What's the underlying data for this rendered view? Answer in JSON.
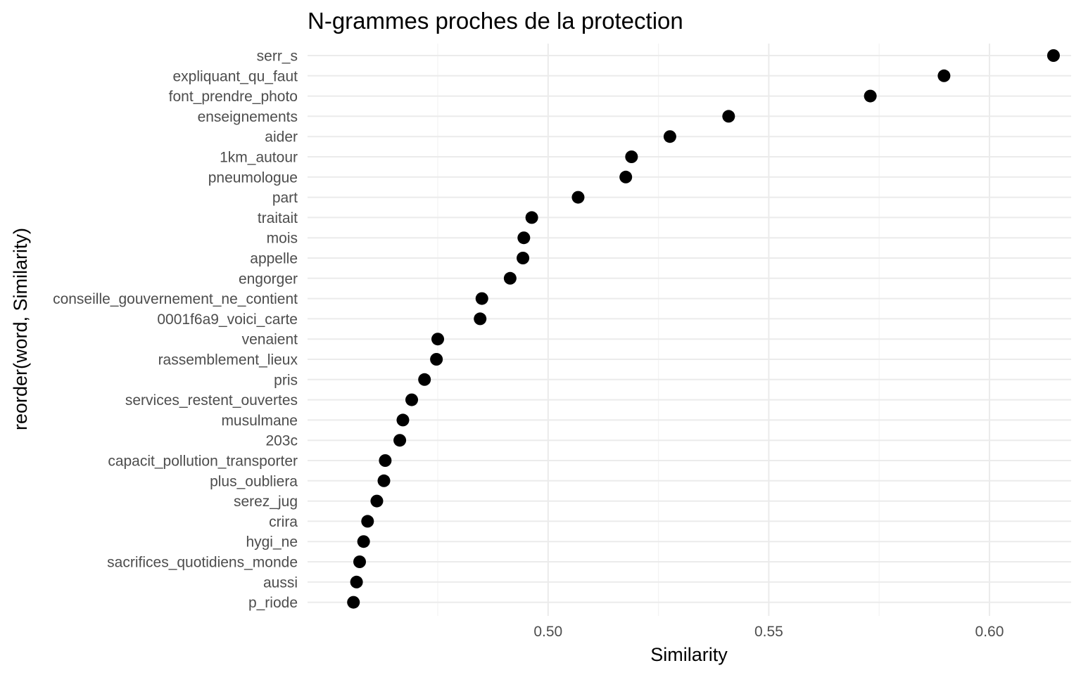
{
  "chart_data": {
    "type": "scatter",
    "title": "N-grammes proches de la protection",
    "xlabel": "Similarity",
    "ylabel": "reorder(word, Similarity)",
    "xlim": [
      0.4455,
      0.6185
    ],
    "x_ticks": [
      "0.50",
      "0.55",
      "0.60"
    ],
    "x_tick_values": [
      0.5,
      0.55,
      0.6
    ],
    "grid": true,
    "point_color": "#000000",
    "categories": [
      "serr_s",
      "expliquant_qu_faut",
      "font_prendre_photo",
      "enseignements",
      "aider",
      "1km_autour",
      "pneumologue",
      "part",
      "traitait",
      "mois",
      "appelle",
      "engorger",
      "conseille_gouvernement_ne_contient",
      "0001f6a9_voici_carte",
      "venaient",
      "rassemblement_lieux",
      "pris",
      "services_restent_ouvertes",
      "musulmane",
      "203c",
      "capacit_pollution_transporter",
      "plus_oubliera",
      "serez_jug",
      "crira",
      "hygi_ne",
      "sacrifices_quotidiens_monde",
      "aussi",
      "p_riode"
    ],
    "values": [
      0.6145,
      0.5897,
      0.573,
      0.5409,
      0.5276,
      0.5189,
      0.5176,
      0.5068,
      0.4963,
      0.4945,
      0.4943,
      0.4914,
      0.485,
      0.4846,
      0.475,
      0.4747,
      0.472,
      0.4691,
      0.4671,
      0.4664,
      0.4631,
      0.4628,
      0.4612,
      0.4591,
      0.4582,
      0.4573,
      0.4566,
      0.4559
    ]
  }
}
